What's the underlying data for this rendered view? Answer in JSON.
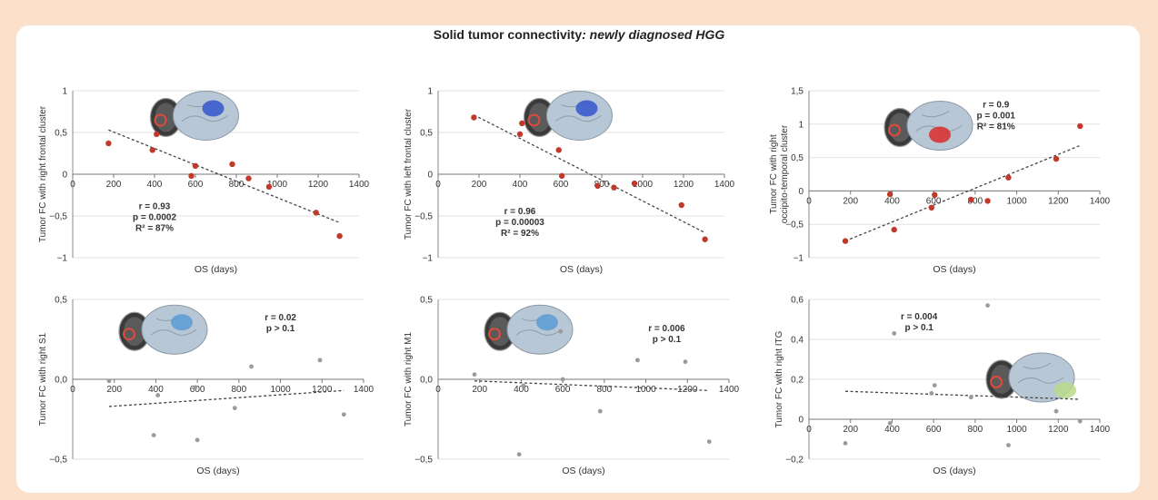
{
  "figure": {
    "title_prefix": "Solid tumor connectivity",
    "title_highlight": ": newly diagnosed HGG"
  },
  "colors": {
    "background": "#fbe1cb",
    "marker_significant": "#c0392b",
    "marker_nonsignificant": "#9a9a9a",
    "trendline": "#444444",
    "gridline": "#e2e2e2"
  },
  "chart_data": [
    {
      "type": "scatter",
      "ylabel": "Tumor FC with right frontal cluster",
      "xlabel": "OS (days)",
      "xlim": [
        0,
        1400
      ],
      "ylim": [
        -1,
        1
      ],
      "xticks": [
        0,
        200,
        400,
        600,
        800,
        1000,
        1200,
        1400
      ],
      "yticks": [
        1,
        0.5,
        0,
        -0.5,
        -1
      ],
      "ytick_labels": [
        "1",
        "0,5",
        "0",
        "−0,5",
        "−1"
      ],
      "y_tick_decimals": 0,
      "marker": "significant",
      "points": [
        [
          175,
          0.37
        ],
        [
          390,
          0.29
        ],
        [
          410,
          0.48
        ],
        [
          580,
          -0.02
        ],
        [
          600,
          0.1
        ],
        [
          780,
          0.12
        ],
        [
          860,
          -0.05
        ],
        [
          960,
          -0.15
        ],
        [
          1190,
          -0.46
        ],
        [
          1305,
          -0.74
        ]
      ],
      "trend": [
        [
          175,
          0.53
        ],
        [
          1305,
          -0.58
        ]
      ],
      "stats": [
        "r = 0.93",
        "p = 0.0002",
        "R² = 87%"
      ],
      "stats_pos": [
        400,
        -0.42
      ],
      "brain_image": "brain-right-frontal-cluster",
      "brain_pos": [
        580,
        0.68
      ]
    },
    {
      "type": "scatter",
      "ylabel": "Tumor FC with left frontal cluster",
      "xlabel": "OS (days)",
      "xlim": [
        0,
        1400
      ],
      "ylim": [
        -1,
        1
      ],
      "xticks": [
        0,
        200,
        400,
        600,
        800,
        1000,
        1200,
        1400
      ],
      "yticks": [
        1,
        0.5,
        0,
        -0.5,
        -1
      ],
      "ytick_labels": [
        "1",
        "0,5",
        "0",
        "−0,5",
        "−1"
      ],
      "y_tick_decimals": 0,
      "marker": "significant",
      "points": [
        [
          175,
          0.68
        ],
        [
          400,
          0.48
        ],
        [
          410,
          0.61
        ],
        [
          590,
          0.29
        ],
        [
          605,
          -0.02
        ],
        [
          780,
          -0.14
        ],
        [
          860,
          -0.16
        ],
        [
          960,
          -0.11
        ],
        [
          1190,
          -0.37
        ],
        [
          1305,
          -0.78
        ]
      ],
      "trend": [
        [
          175,
          0.71
        ],
        [
          1305,
          -0.7
        ]
      ],
      "stats": [
        "r = 0.96",
        "p = 0.00003",
        "R² = 92%"
      ],
      "stats_pos": [
        400,
        -0.48
      ],
      "brain_image": "brain-left-frontal-cluster",
      "brain_pos": [
        620,
        0.68
      ]
    },
    {
      "type": "scatter",
      "ylabel": "Tumor FC with right occipito-temporal cluster",
      "xlabel": "OS (days)",
      "xlim": [
        0,
        1400
      ],
      "ylim": [
        -1,
        1.5
      ],
      "xticks": [
        0,
        200,
        400,
        600,
        800,
        1000,
        1200,
        1400
      ],
      "yticks": [
        1.5,
        1,
        0.5,
        0,
        -0.5,
        -1
      ],
      "ytick_labels": [
        "1,5",
        "1",
        "0,5",
        "0",
        "−0,5",
        "−1"
      ],
      "y_tick_decimals": 0,
      "marker": "significant",
      "points": [
        [
          175,
          -0.75
        ],
        [
          390,
          -0.05
        ],
        [
          410,
          -0.58
        ],
        [
          590,
          -0.25
        ],
        [
          605,
          -0.06
        ],
        [
          780,
          -0.13
        ],
        [
          860,
          -0.15
        ],
        [
          960,
          0.2
        ],
        [
          1190,
          0.48
        ],
        [
          1305,
          0.97
        ]
      ],
      "trend": [
        [
          175,
          -0.75
        ],
        [
          1305,
          0.68
        ]
      ],
      "stats": [
        "r = 0.9",
        "p = 0.001",
        "R² = 81%"
      ],
      "stats_pos": [
        900,
        1.25
      ],
      "brain_image": "brain-right-occipito-temporal-cluster",
      "brain_pos": [
        560,
        0.95
      ]
    },
    {
      "type": "scatter",
      "ylabel": "Tumor FC with right S1",
      "xlabel": "OS (days)",
      "xlim": [
        0,
        1400
      ],
      "ylim": [
        -0.5,
        0.5
      ],
      "xticks": [
        0,
        200,
        400,
        600,
        800,
        1000,
        1200,
        1400
      ],
      "yticks": [
        0.5,
        0,
        -0.5
      ],
      "ytick_labels": [
        "0,5",
        "0,0",
        "−0,5"
      ],
      "y_tick_decimals": 1,
      "marker": "nonsignificant",
      "points": [
        [
          175,
          -0.01
        ],
        [
          390,
          -0.35
        ],
        [
          410,
          -0.1
        ],
        [
          590,
          -0.05
        ],
        [
          600,
          -0.38
        ],
        [
          780,
          -0.18
        ],
        [
          860,
          0.08
        ],
        [
          1190,
          0.12
        ],
        [
          1305,
          -0.22
        ]
      ],
      "trend": [
        [
          175,
          -0.17
        ],
        [
          1305,
          -0.07
        ]
      ],
      "stats": [
        "r = 0.02",
        "p > 0.1"
      ],
      "stats_pos": [
        1000,
        0.37
      ],
      "brain_image": "brain-right-s1",
      "brain_pos": [
        420,
        0.3
      ]
    },
    {
      "type": "scatter",
      "ylabel": "Tumor FC with right M1",
      "xlabel": "OS (days)",
      "xlim": [
        0,
        1400
      ],
      "ylim": [
        -0.5,
        0.5
      ],
      "xticks": [
        0,
        200,
        400,
        600,
        800,
        1000,
        1200,
        1400
      ],
      "yticks": [
        0.5,
        0,
        -0.5
      ],
      "ytick_labels": [
        "0,5",
        "0,0",
        "−0,5"
      ],
      "y_tick_decimals": 1,
      "marker": "nonsignificant",
      "points": [
        [
          175,
          0.03
        ],
        [
          390,
          -0.47
        ],
        [
          410,
          -0.04
        ],
        [
          590,
          0.3
        ],
        [
          600,
          0.0
        ],
        [
          780,
          -0.2
        ],
        [
          960,
          0.12
        ],
        [
          1190,
          0.11
        ],
        [
          1305,
          -0.39
        ]
      ],
      "trend": [
        [
          175,
          -0.01
        ],
        [
          1305,
          -0.07
        ]
      ],
      "stats": [
        "r = 0.006",
        "p > 0.1"
      ],
      "stats_pos": [
        1100,
        0.3
      ],
      "brain_image": "brain-right-m1",
      "brain_pos": [
        420,
        0.3
      ]
    },
    {
      "type": "scatter",
      "ylabel": "Tumor FC with right ITG",
      "xlabel": "OS (days)",
      "xlim": [
        0,
        1400
      ],
      "ylim": [
        -0.2,
        0.6
      ],
      "xticks": [
        0,
        200,
        400,
        600,
        800,
        1000,
        1200,
        1400
      ],
      "yticks": [
        0.6,
        0.4,
        0.2,
        0,
        -0.2
      ],
      "ytick_labels": [
        "0,6",
        "0,4",
        "0,2",
        "0",
        "−0,2"
      ],
      "y_tick_decimals": 1,
      "marker": "nonsignificant",
      "points": [
        [
          175,
          -0.12
        ],
        [
          390,
          -0.02
        ],
        [
          410,
          0.43
        ],
        [
          590,
          0.13
        ],
        [
          605,
          0.17
        ],
        [
          780,
          0.11
        ],
        [
          860,
          0.57
        ],
        [
          960,
          -0.13
        ],
        [
          1190,
          0.04
        ],
        [
          1305,
          -0.01
        ]
      ],
      "trend": [
        [
          175,
          0.14
        ],
        [
          1305,
          0.1
        ]
      ],
      "stats": [
        "r = 0.004",
        "p > 0.1"
      ],
      "stats_pos": [
        530,
        0.5
      ],
      "brain_image": "brain-right-itg",
      "brain_pos": [
        1050,
        0.2
      ]
    }
  ]
}
